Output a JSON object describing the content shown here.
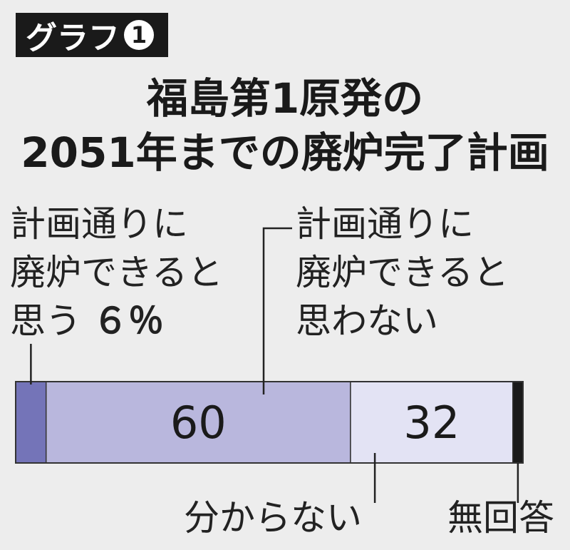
{
  "badge": {
    "text": "グラフ",
    "number": "1"
  },
  "chart_data": {
    "type": "bar",
    "orientation": "horizontal-stacked",
    "title_line1": "福島第1原発の",
    "title_line2": "2051年までの廃炉完了計画",
    "unit": "%",
    "segments": [
      {
        "label_lines": [
          "計画通りに",
          "廃炉できると",
          "思う"
        ],
        "value": 6,
        "value_label": "６％",
        "color": "#7474b8"
      },
      {
        "label_lines": [
          "計画通りに",
          "廃炉できると",
          "思わない"
        ],
        "value": 60,
        "value_label": "60",
        "color": "#b9b7dd"
      },
      {
        "label": "分からない",
        "value": 32,
        "value_label": "32",
        "color": "#e3e3f4"
      },
      {
        "label": "無回答",
        "value": 2,
        "value_label": "",
        "color": "#1a1a1a"
      }
    ]
  }
}
